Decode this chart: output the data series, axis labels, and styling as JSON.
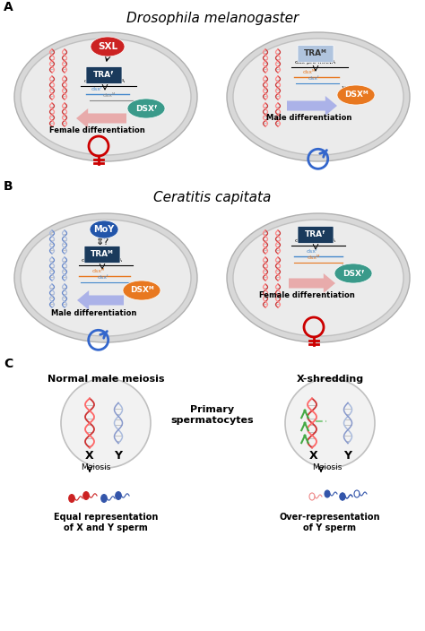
{
  "title_A": "Drosophila melanogaster",
  "title_B": "Ceratitis capitata",
  "panel_A_label": "A",
  "panel_B_label": "B",
  "panel_C_label": "C",
  "bg_color": "#ffffff",
  "female_symbol_color": "#cc0000",
  "male_symbol_color": "#3366cc",
  "section_C_left_title": "Normal male meiosis",
  "section_C_right_title": "X-shredding",
  "section_C_middle": "Primary\nspermatocytes",
  "meiosis_label": "Meiosis",
  "equal_rep_label": "Equal representation\nof X and Y sperm",
  "over_rep_label": "Over-representation\nof Y sperm",
  "sxl_color": "#cc2222",
  "tra_dark_color": "#1a3a5c",
  "tra_light_color": "#b0c4de",
  "moy_color": "#2255aa",
  "dsx_orange_color": "#e87820",
  "dsx_teal_color": "#3a9a8a",
  "dna_red_color": "#cc3333",
  "dna_blue_color": "#6688cc",
  "dna_light_blue_color": "#aabbdd",
  "scissors_green_color": "#44aa44",
  "sperm_red_color": "#cc2222",
  "sperm_blue_color": "#3355aa",
  "sperm_pink_color": "#ee8888"
}
